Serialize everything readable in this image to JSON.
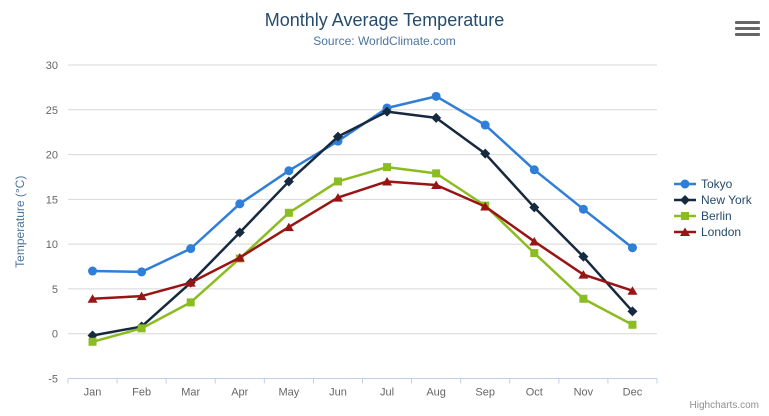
{
  "chart": {
    "title": "Monthly Average Temperature",
    "subtitle": "Source: WorldClimate.com",
    "credits": "Highcharts.com",
    "export_menu_icon": "hamburger-icon"
  },
  "colors": {
    "title": "#274b6d",
    "subtitle": "#4d759e",
    "axis_title": "#4d759e",
    "axis_labels": "#666666",
    "gridline": "#d8d8d8",
    "x_axis_line": "#c0d0e0",
    "legend_text": "#274b6d",
    "credits_text": "#909090",
    "background": "#ffffff"
  },
  "chart_data": {
    "type": "line",
    "title": "Monthly Average Temperature",
    "subtitle": "Source: WorldClimate.com",
    "categories": [
      "Jan",
      "Feb",
      "Mar",
      "Apr",
      "May",
      "Jun",
      "Jul",
      "Aug",
      "Sep",
      "Oct",
      "Nov",
      "Dec"
    ],
    "series": [
      {
        "name": "Tokyo",
        "color": "#2f7ed8",
        "marker": "circle",
        "values": [
          7.0,
          6.9,
          9.5,
          14.5,
          18.2,
          21.5,
          25.2,
          26.5,
          23.3,
          18.3,
          13.9,
          9.6
        ]
      },
      {
        "name": "New York",
        "color": "#16293f",
        "marker": "diamond",
        "values": [
          -0.2,
          0.8,
          5.7,
          11.3,
          17.0,
          22.0,
          24.8,
          24.1,
          20.1,
          14.1,
          8.6,
          2.5
        ]
      },
      {
        "name": "Berlin",
        "color": "#8bbc21",
        "marker": "square",
        "values": [
          -0.9,
          0.6,
          3.5,
          8.4,
          13.5,
          17.0,
          18.6,
          17.9,
          14.3,
          9.0,
          3.9,
          1.0
        ]
      },
      {
        "name": "London",
        "color": "#991414",
        "marker": "triangle",
        "values": [
          3.9,
          4.2,
          5.7,
          8.5,
          11.9,
          15.2,
          17.0,
          16.6,
          14.2,
          10.3,
          6.6,
          4.8
        ]
      }
    ],
    "xlabel": "",
    "ylabel": "Temperature (°C)",
    "ylim": [
      -5,
      30
    ],
    "ytick_interval": 5,
    "grid": "horizontal-only",
    "legend_position": "right"
  }
}
